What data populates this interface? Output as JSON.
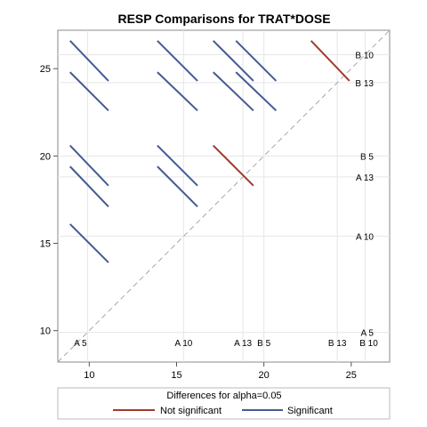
{
  "chart_data": {
    "type": "diffogram",
    "title": "RESP Comparisons for TRAT*DOSE",
    "xlim": [
      8.2,
      27.2
    ],
    "ylim": [
      8.2,
      27.2
    ],
    "xticks": [
      10,
      15,
      20,
      25
    ],
    "yticks": [
      10,
      15,
      20,
      25
    ],
    "levels": [
      {
        "label": "A 5",
        "mean": 9.9
      },
      {
        "label": "A 10",
        "mean": 15.4
      },
      {
        "label": "A 13",
        "mean": 18.8
      },
      {
        "label": "B 5",
        "mean": 20.0
      },
      {
        "label": "B 13",
        "mean": 24.2
      },
      {
        "label": "B 10",
        "mean": 25.8
      }
    ],
    "bottom_labels": [
      "A 5",
      "A 10",
      "A 13",
      "B 5",
      "B 13",
      "B 10"
    ],
    "right_labels": [
      "A 5",
      "A 10",
      "A 13",
      "B 5",
      "B 13",
      "B 10"
    ],
    "reference_line": "diagonal y = x (dashed)",
    "segments": [
      {
        "x1": 8.9,
        "y1": 16.1,
        "x2": 11.1,
        "y2": 13.9,
        "significant": true
      },
      {
        "x1": 8.9,
        "y1": 19.4,
        "x2": 11.1,
        "y2": 17.1,
        "significant": true
      },
      {
        "x1": 8.9,
        "y1": 20.6,
        "x2": 11.1,
        "y2": 18.3,
        "significant": true
      },
      {
        "x1": 8.9,
        "y1": 24.8,
        "x2": 11.1,
        "y2": 22.6,
        "significant": true
      },
      {
        "x1": 8.9,
        "y1": 26.6,
        "x2": 11.1,
        "y2": 24.3,
        "significant": true
      },
      {
        "x1": 13.9,
        "y1": 19.4,
        "x2": 16.2,
        "y2": 17.1,
        "significant": true
      },
      {
        "x1": 13.9,
        "y1": 20.6,
        "x2": 16.2,
        "y2": 18.3,
        "significant": true
      },
      {
        "x1": 13.9,
        "y1": 24.8,
        "x2": 16.2,
        "y2": 22.6,
        "significant": true
      },
      {
        "x1": 13.9,
        "y1": 26.6,
        "x2": 16.2,
        "y2": 24.3,
        "significant": true
      },
      {
        "x1": 17.1,
        "y1": 20.6,
        "x2": 19.4,
        "y2": 18.3,
        "significant": false
      },
      {
        "x1": 17.1,
        "y1": 24.8,
        "x2": 19.4,
        "y2": 22.6,
        "significant": true
      },
      {
        "x1": 17.1,
        "y1": 26.6,
        "x2": 19.4,
        "y2": 24.3,
        "significant": true
      },
      {
        "x1": 18.4,
        "y1": 24.8,
        "x2": 20.7,
        "y2": 22.6,
        "significant": true
      },
      {
        "x1": 18.4,
        "y1": 26.6,
        "x2": 20.7,
        "y2": 24.3,
        "significant": true
      },
      {
        "x1": 22.7,
        "y1": 26.6,
        "x2": 24.9,
        "y2": 24.3,
        "significant": false
      }
    ],
    "legend": {
      "title": "Differences for alpha=0.05",
      "placement": "bottom",
      "entries": [
        {
          "label": "Not significant",
          "color": "#a23a2c"
        },
        {
          "label": "Significant",
          "color": "#445a94"
        }
      ]
    },
    "colors": {
      "not_significant": "#a23a2c",
      "significant": "#445a94",
      "reference": "#a8a8a8",
      "grid": "#e6e6e6",
      "frame": "#888888"
    }
  }
}
